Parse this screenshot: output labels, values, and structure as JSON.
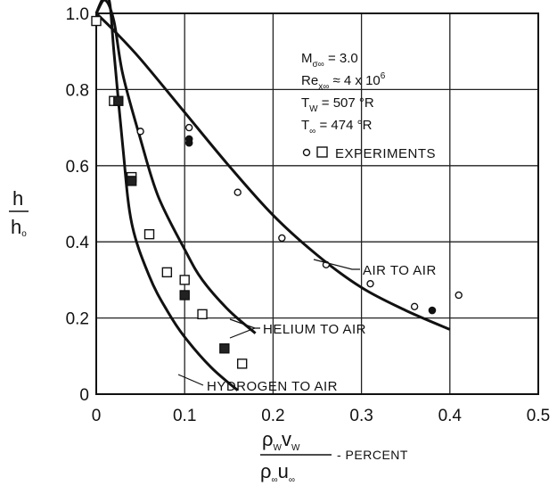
{
  "chart_data": {
    "type": "scatter",
    "xlim": [
      0,
      0.5
    ],
    "ylim": [
      0,
      1.0
    ],
    "grid": true,
    "x_ticks": [
      "0",
      "0.1",
      "0.2",
      "0.3",
      "0.4",
      "0.5"
    ],
    "y_ticks": [
      "0",
      "0.2",
      "0.4",
      "0.6",
      "0.8",
      "1.0"
    ],
    "x_tick_values": [
      0,
      0.1,
      0.2,
      0.3,
      0.4,
      0.5
    ],
    "y_tick_values": [
      0,
      0.2,
      0.4,
      0.6,
      0.8,
      1.0
    ],
    "ylabel_num": "h",
    "ylabel_den": "h",
    "ylabel_den_sub": "o",
    "xlabel_suffix": "- PERCENT",
    "conditions": [
      {
        "main": "M",
        "sub": "σ∞",
        "rest": " = 3.0"
      },
      {
        "main": "Re",
        "sub": "x∞",
        "rest": " ≈ 4 x 10",
        "sup": "6"
      },
      {
        "main": "T",
        "sub": "W",
        "rest": " = 507 °R"
      },
      {
        "main": "T",
        "sub": "∞",
        "rest": " = 474 °R"
      }
    ],
    "legend_label": "EXPERIMENTS",
    "series": [
      {
        "name": "AIR TO AIR",
        "curve": [
          [
            0,
            1.0
          ],
          [
            0.02,
            0.955
          ],
          [
            0.05,
            0.88
          ],
          [
            0.1,
            0.74
          ],
          [
            0.15,
            0.6
          ],
          [
            0.2,
            0.47
          ],
          [
            0.25,
            0.365
          ],
          [
            0.3,
            0.28
          ],
          [
            0.35,
            0.22
          ],
          [
            0.4,
            0.17
          ]
        ],
        "points_open": [
          [
            0.05,
            0.69
          ],
          [
            0.105,
            0.7
          ],
          [
            0.16,
            0.53
          ],
          [
            0.21,
            0.41
          ],
          [
            0.26,
            0.34
          ],
          [
            0.31,
            0.29
          ],
          [
            0.36,
            0.23
          ],
          [
            0.41,
            0.26
          ]
        ],
        "points_filled": [
          [
            0.105,
            0.67
          ],
          [
            0.105,
            0.66
          ],
          [
            0.38,
            0.22
          ]
        ]
      },
      {
        "name": "HELIUM TO AIR",
        "curve": [
          [
            0,
            1.0
          ],
          [
            0.01,
            1.035
          ],
          [
            0.02,
            0.98
          ],
          [
            0.03,
            0.84
          ],
          [
            0.05,
            0.67
          ],
          [
            0.07,
            0.52
          ],
          [
            0.1,
            0.38
          ],
          [
            0.12,
            0.3
          ],
          [
            0.15,
            0.22
          ],
          [
            0.18,
            0.16
          ]
        ],
        "points_open": [
          [
            0.02,
            0.77
          ],
          [
            0.04,
            0.57
          ],
          [
            0.06,
            0.42
          ],
          [
            0.08,
            0.32
          ],
          [
            0.1,
            0.3
          ],
          [
            0.12,
            0.21
          ],
          [
            0.165,
            0.08
          ]
        ],
        "points_filled": [
          [
            0.025,
            0.77
          ],
          [
            0.04,
            0.56
          ],
          [
            0.1,
            0.26
          ],
          [
            0.145,
            0.12
          ]
        ]
      },
      {
        "name": "HYDROGEN TO AIR",
        "curve": [
          [
            0,
            1.0
          ],
          [
            0.008,
            1.04
          ],
          [
            0.015,
            1.03
          ],
          [
            0.02,
            0.9
          ],
          [
            0.03,
            0.65
          ],
          [
            0.04,
            0.45
          ],
          [
            0.06,
            0.31
          ],
          [
            0.08,
            0.22
          ],
          [
            0.1,
            0.15
          ],
          [
            0.13,
            0.07
          ],
          [
            0.16,
            0.01
          ]
        ],
        "points_open": [
          [
            0,
            0.98
          ]
        ],
        "points_filled": []
      }
    ]
  }
}
